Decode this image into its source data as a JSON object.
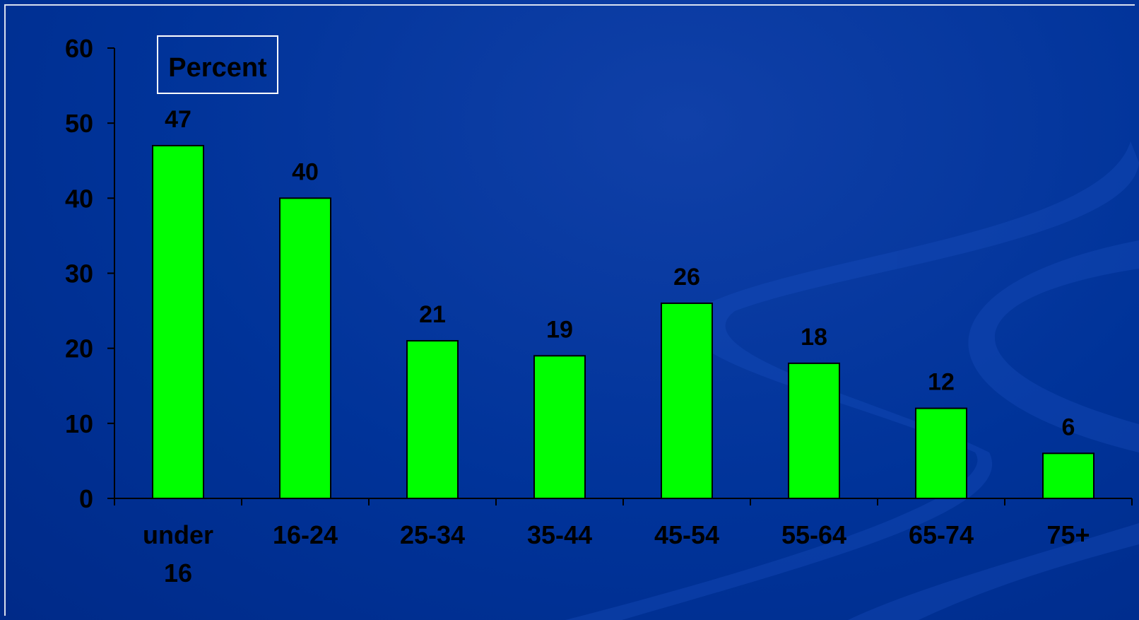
{
  "colors": {
    "background": "#003399",
    "bar_fill": "#00ff00",
    "axis": "#000000",
    "legend_border": "#ffffff"
  },
  "chart_data": {
    "type": "bar",
    "categories": [
      "under 16",
      "16-24",
      "25-34",
      "35-44",
      "45-54",
      "55-64",
      "65-74",
      "75+"
    ],
    "values": [
      47,
      40,
      21,
      19,
      26,
      18,
      12,
      6
    ],
    "data_labels": [
      "47",
      "40",
      "21",
      "19",
      "26",
      "18",
      "12",
      "6"
    ],
    "yticks": [
      "0",
      "10",
      "20",
      "30",
      "40",
      "50",
      "60"
    ],
    "ylim": [
      0,
      60
    ],
    "legend": "Percent",
    "legend_placement": "top-left",
    "grid": false,
    "title": "",
    "xlabel": "",
    "ylabel": ""
  }
}
